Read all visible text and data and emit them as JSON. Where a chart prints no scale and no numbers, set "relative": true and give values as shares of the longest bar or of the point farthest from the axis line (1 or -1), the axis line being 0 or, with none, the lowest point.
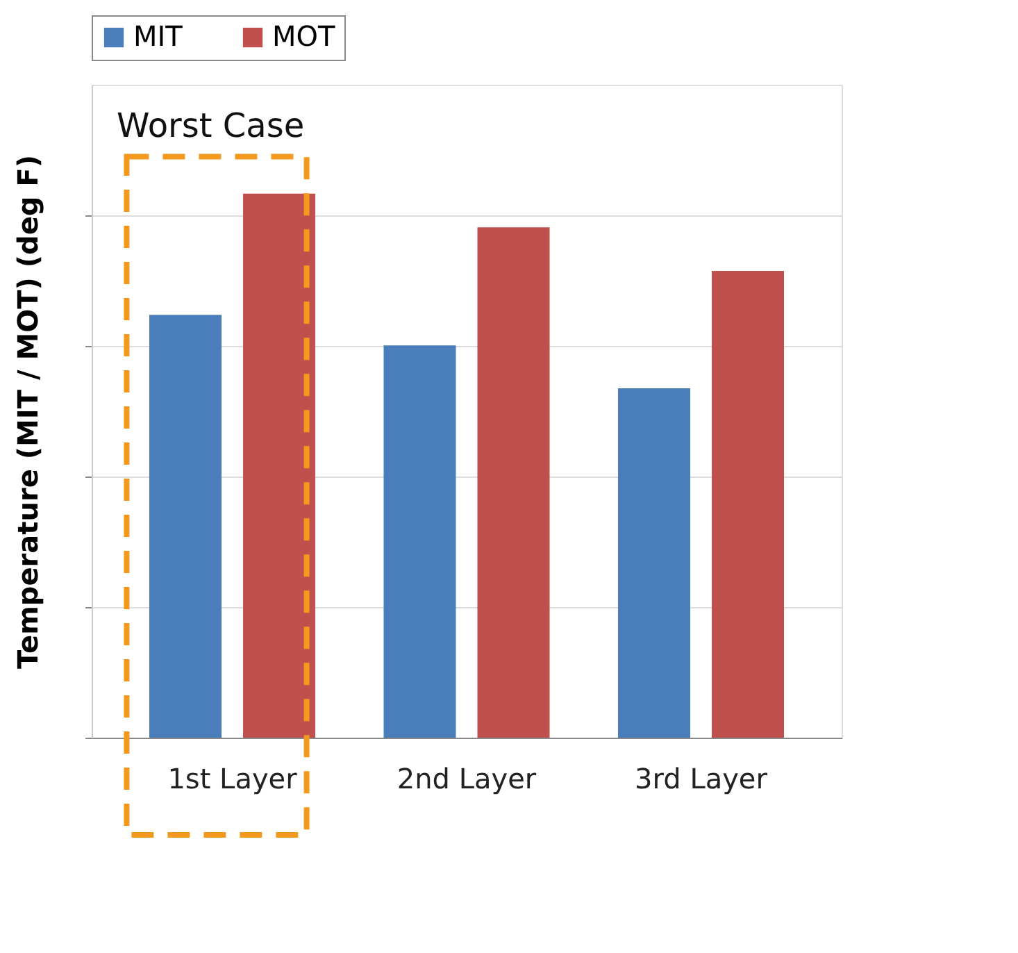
{
  "chart_data": {
    "type": "bar",
    "relative": true,
    "ylabel": "Temperature (MIT / MOT)    (deg F)",
    "categories": [
      "1st Layer",
      "2nd Layer",
      "3rd Layer"
    ],
    "series": [
      {
        "name": "MIT",
        "color": "#4a7ebb",
        "values": [
          0.777,
          0.721,
          0.642
        ]
      },
      {
        "name": "MOT",
        "color": "#c0504d",
        "values": [
          1,
          0.938,
          0.858
        ]
      }
    ],
    "legend": "top",
    "grid": "y",
    "annotations": [
      "Worst Case"
    ]
  }
}
